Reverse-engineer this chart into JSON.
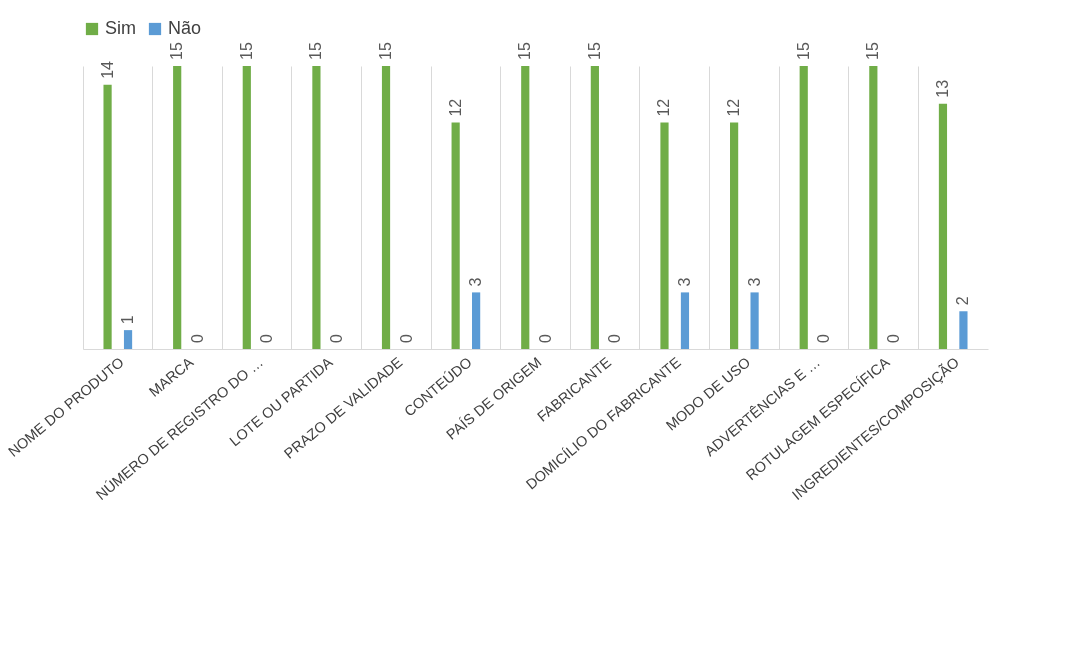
{
  "chart_data": {
    "type": "bar",
    "categories": [
      "NOME DO PRODUTO",
      "MARCA",
      "NÚMERO DE REGISTRO DO …",
      "LOTE OU PARTIDA",
      "PRAZO DE VALIDADE",
      "CONTEÚDO",
      "PAÍS DE ORIGEM",
      "FABRICANTE",
      "DOMICÍLIO DO FABRICANTE",
      "MODO DE USO",
      "ADVERTÊNCIAS E …",
      "ROTULAGEM ESPECÍFICA",
      "INGREDIENTES/COMPOSIÇÃO"
    ],
    "series": [
      {
        "name": "Sim",
        "color": "#70ad47",
        "values": [
          14,
          15,
          15,
          15,
          15,
          12,
          15,
          15,
          12,
          12,
          15,
          15,
          13
        ]
      },
      {
        "name": "Não",
        "color": "#5b9bd5",
        "values": [
          1,
          0,
          0,
          0,
          0,
          3,
          0,
          0,
          3,
          3,
          0,
          0,
          2
        ]
      }
    ],
    "data_labels": true,
    "legend": "top",
    "grid": "x"
  }
}
